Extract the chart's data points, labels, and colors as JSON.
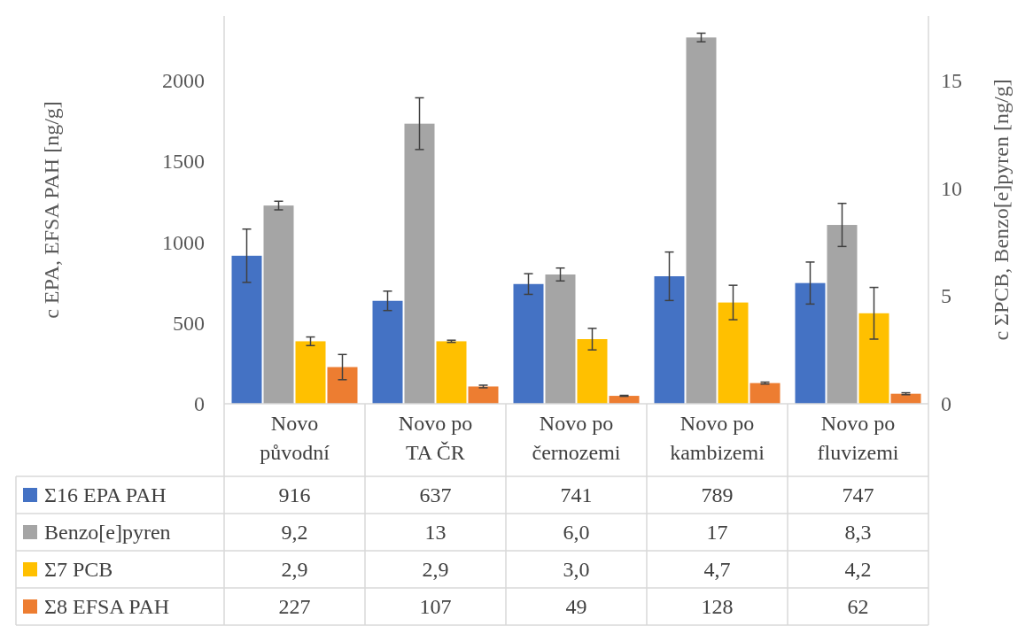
{
  "chart_data": {
    "type": "bar",
    "ylabel": "c EPA, EFSA PAH [ng/g]",
    "y2label": "c ΣPCB, Benzo[e]pyren [ng/g]",
    "categories": [
      "Novo původní",
      "Novo po TA ČR",
      "Novo po černozemi",
      "Novo po kambizemi",
      "Novo po fluvizemi"
    ],
    "ylim": [
      0,
      2400
    ],
    "yticks": [
      0,
      500,
      1000,
      1500,
      2000
    ],
    "y2lim": [
      0,
      18
    ],
    "y2ticks": [
      0,
      5,
      10,
      15
    ],
    "grid": false,
    "legend": "bottom left",
    "series": [
      {
        "name": "Σ16 EPA PAH",
        "color": "#4472c4",
        "values": [
          916,
          637,
          741,
          789,
          747
        ],
        "errors": [
          165,
          60,
          64,
          150,
          130
        ],
        "value_labels": [
          "916",
          "637",
          "741",
          "789",
          "747"
        ]
      },
      {
        "name": "Benzo[e]pyren",
        "color": "#a5a5a5",
        "axis": "y2",
        "values": [
          9.2,
          13,
          6.0,
          17,
          8.3
        ],
        "errors": [
          0.2,
          1.2,
          0.3,
          0.2,
          1.0
        ],
        "value_labels": [
          "9,2",
          "13",
          "6,0",
          "17",
          "8,3"
        ]
      },
      {
        "name": "Σ7 PCB",
        "color": "#ffc000",
        "axis": "y2",
        "values": [
          2.9,
          2.9,
          3.0,
          4.7,
          4.2
        ],
        "errors": [
          0.2,
          0.05,
          0.5,
          0.8,
          1.2
        ],
        "value_labels": [
          "2,9",
          "2,9",
          "3,0",
          "4,7",
          "4,2"
        ]
      },
      {
        "name": "Σ8 EFSA PAH",
        "color": "#ed7d31",
        "values": [
          227,
          107,
          49,
          128,
          62
        ],
        "errors": [
          78,
          8,
          3,
          6,
          6
        ],
        "value_labels": [
          "227",
          "107",
          "49",
          "128",
          "62"
        ]
      }
    ]
  }
}
